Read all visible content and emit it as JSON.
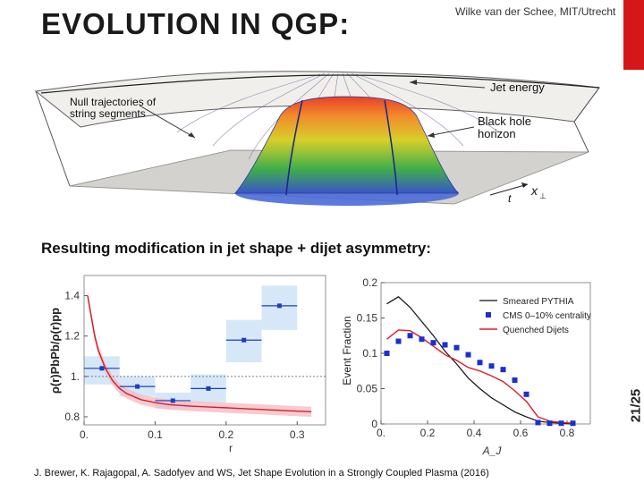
{
  "slide": {
    "title": "EVOLUTION IN QGP:",
    "author": "Wilke van der Schee, MIT/Utrecht",
    "subtitle": "Resulting modification in jet shape + dijet asymmetry:",
    "page": "21/25",
    "citation": "J. Brewer, K. Rajagopal, A. Sadofyev and WS, Jet Shape Evolution in a Strongly Coupled Plasma (2016)",
    "accent_color": "#d5171a"
  },
  "diagram": {
    "labels": {
      "null_trajectories": [
        "Null trajectories of",
        "string segments"
      ],
      "jet_energy": "Jet energy",
      "black_hole": [
        "Black hole",
        "horizon"
      ],
      "x_axis": "x",
      "x_sub": "⊥",
      "t_axis": "t"
    }
  },
  "chart_data": [
    {
      "type": "line",
      "title": "",
      "xlabel": "r",
      "ylabel": "ρ(r)PbPb/ρ(r)pp",
      "xlim": [
        0,
        0.34
      ],
      "ylim": [
        0.76,
        1.5
      ],
      "x_ticks": [
        "0.",
        "0.1",
        "0.2",
        "0.3"
      ],
      "y_ticks": [
        "0.8",
        "1.",
        "1.2",
        "1.4"
      ],
      "reference_line": 1.0,
      "data_points": [
        {
          "x": 0.025,
          "y": 1.04,
          "xerr": 0.025,
          "ylow": 0.96,
          "yhigh": 1.1
        },
        {
          "x": 0.075,
          "y": 0.95,
          "xerr": 0.025,
          "ylow": 0.9,
          "yhigh": 1.0
        },
        {
          "x": 0.125,
          "y": 0.88,
          "xerr": 0.025,
          "ylow": 0.84,
          "yhigh": 0.92
        },
        {
          "x": 0.175,
          "y": 0.94,
          "xerr": 0.025,
          "ylow": 0.87,
          "yhigh": 1.01
        },
        {
          "x": 0.225,
          "y": 1.18,
          "xerr": 0.025,
          "ylow": 1.07,
          "yhigh": 1.28
        },
        {
          "x": 0.275,
          "y": 1.35,
          "xerr": 0.025,
          "ylow": 1.23,
          "yhigh": 1.45
        }
      ],
      "model_curve": {
        "x": [
          0.005,
          0.01,
          0.015,
          0.02,
          0.03,
          0.04,
          0.05,
          0.06,
          0.08,
          0.1,
          0.12,
          0.15,
          0.18,
          0.21,
          0.24,
          0.27,
          0.3,
          0.32
        ],
        "y": [
          1.4,
          1.3,
          1.2,
          1.13,
          1.04,
          0.98,
          0.94,
          0.915,
          0.885,
          0.87,
          0.86,
          0.853,
          0.848,
          0.843,
          0.838,
          0.833,
          0.828,
          0.825
        ],
        "band": 0.025
      }
    },
    {
      "type": "line",
      "title": "",
      "xlabel": "A_J",
      "ylabel": "Event Fraction",
      "xlim": [
        0,
        0.9
      ],
      "ylim": [
        0,
        0.2
      ],
      "x_ticks": [
        "0.",
        "0.2",
        "0.4",
        "0.6",
        "0.8"
      ],
      "y_ticks": [
        "0",
        "0.05",
        "0.1",
        "0.15",
        "0.2"
      ],
      "legend": [
        "Smeared PYTHIA",
        "CMS 0–10% centrality",
        "Quenched Dijets"
      ],
      "series": [
        {
          "name": "Smeared PYTHIA",
          "x": [
            0.025,
            0.075,
            0.125,
            0.175,
            0.225,
            0.275,
            0.325,
            0.375,
            0.425,
            0.475,
            0.525,
            0.575,
            0.625,
            0.675,
            0.725,
            0.775,
            0.825
          ],
          "y": [
            0.17,
            0.18,
            0.165,
            0.145,
            0.125,
            0.103,
            0.085,
            0.065,
            0.05,
            0.037,
            0.027,
            0.017,
            0.01,
            0.004,
            0.002,
            0.001,
            0.0
          ]
        },
        {
          "name": "CMS 0–10% centrality",
          "x": [
            0.025,
            0.075,
            0.125,
            0.175,
            0.225,
            0.275,
            0.325,
            0.375,
            0.425,
            0.475,
            0.525,
            0.575,
            0.625,
            0.675,
            0.725,
            0.775,
            0.825
          ],
          "y": [
            0.1,
            0.117,
            0.125,
            0.12,
            0.115,
            0.112,
            0.108,
            0.098,
            0.087,
            0.082,
            0.077,
            0.062,
            0.042,
            0.002,
            0.001,
            0.001,
            0.001
          ]
        },
        {
          "name": "Quenched Dijets",
          "x": [
            0.025,
            0.075,
            0.125,
            0.175,
            0.225,
            0.275,
            0.325,
            0.375,
            0.425,
            0.475,
            0.525,
            0.575,
            0.625,
            0.675,
            0.725,
            0.775,
            0.825
          ],
          "y": [
            0.12,
            0.133,
            0.132,
            0.122,
            0.11,
            0.098,
            0.09,
            0.08,
            0.075,
            0.068,
            0.06,
            0.047,
            0.032,
            0.01,
            0.004,
            0.002,
            0.001
          ]
        }
      ]
    }
  ]
}
